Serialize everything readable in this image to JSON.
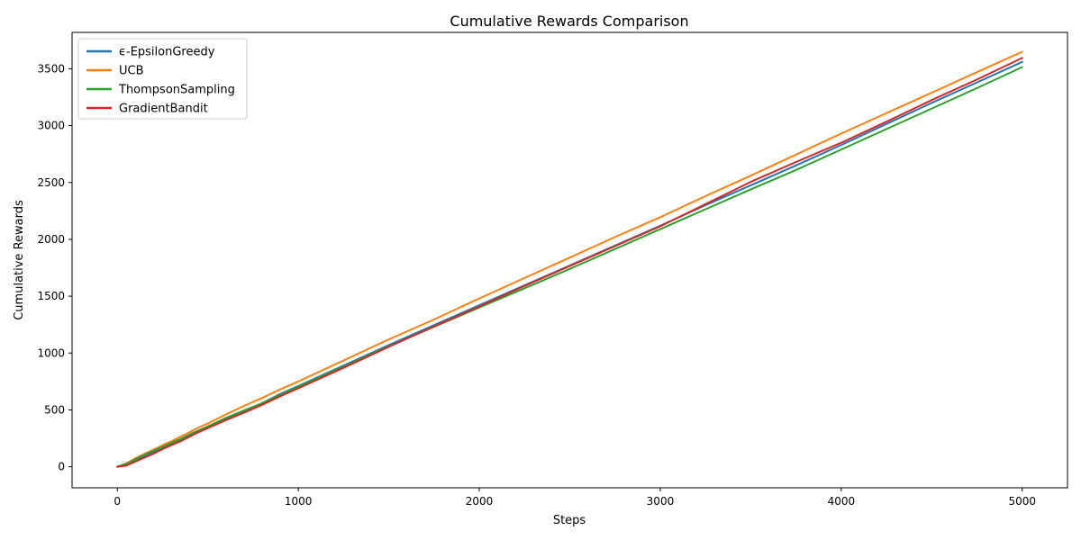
{
  "chart_data": {
    "type": "line",
    "title": "Cumulative Rewards Comparison",
    "xlabel": "Steps",
    "ylabel": "Cumulative Rewards",
    "xlim": [
      -250,
      5250
    ],
    "ylim": [
      -185,
      3820
    ],
    "xticks": [
      0,
      1000,
      2000,
      3000,
      4000,
      5000
    ],
    "yticks": [
      0,
      500,
      1000,
      1500,
      2000,
      2500,
      3000,
      3500
    ],
    "grid": false,
    "legend_position": "top-left",
    "x": [
      0,
      50,
      100,
      150,
      200,
      250,
      300,
      350,
      400,
      450,
      500,
      600,
      700,
      800,
      900,
      1000,
      1250,
      1500,
      1750,
      2000,
      2250,
      2500,
      2750,
      3000,
      3250,
      3500,
      3750,
      4000,
      4250,
      4500,
      4750,
      5000
    ],
    "series": [
      {
        "name": "ϵ-EpsilonGreedy",
        "color": "#1f77b4",
        "values": [
          0,
          20,
          55,
          95,
          130,
          165,
          200,
          235,
          275,
          310,
          345,
          420,
          490,
          560,
          640,
          710,
          890,
          1070,
          1245,
          1420,
          1595,
          1770,
          1945,
          2120,
          2300,
          2475,
          2650,
          2830,
          3015,
          3200,
          3380,
          3560
        ]
      },
      {
        "name": "UCB",
        "color": "#ff7f0e",
        "values": [
          0,
          30,
          75,
          115,
          150,
          190,
          225,
          265,
          305,
          345,
          380,
          460,
          535,
          605,
          680,
          750,
          935,
          1120,
          1295,
          1480,
          1660,
          1840,
          2020,
          2195,
          2380,
          2560,
          2745,
          2930,
          3110,
          3290,
          3470,
          3650
        ]
      },
      {
        "name": "ThompsonSampling",
        "color": "#2ca02c",
        "values": [
          0,
          25,
          65,
          105,
          140,
          175,
          210,
          245,
          285,
          320,
          355,
          430,
          495,
          560,
          630,
          705,
          880,
          1060,
          1230,
          1400,
          1570,
          1740,
          1915,
          2090,
          2265,
          2440,
          2610,
          2790,
          2970,
          3150,
          3330,
          3515
        ]
      },
      {
        "name": "GradientBandit",
        "color": "#d62728",
        "values": [
          0,
          10,
          45,
          80,
          115,
          155,
          190,
          225,
          265,
          305,
          340,
          410,
          475,
          545,
          620,
          690,
          870,
          1055,
          1235,
          1410,
          1590,
          1765,
          1940,
          2115,
          2310,
          2505,
          2680,
          2850,
          3035,
          3225,
          3405,
          3595
        ]
      }
    ]
  }
}
